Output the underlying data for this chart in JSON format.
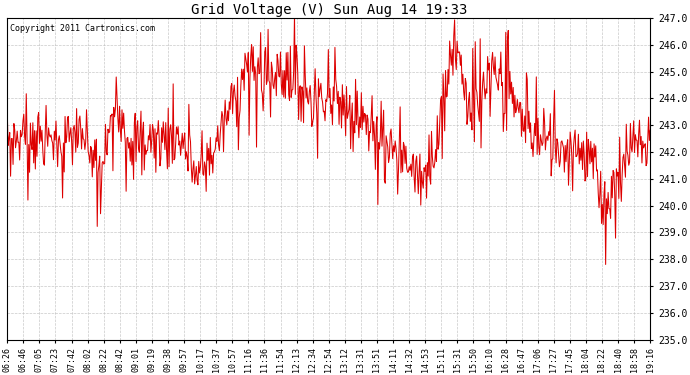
{
  "title": "Grid Voltage (V) Sun Aug 14 19:33",
  "copyright": "Copyright 2011 Cartronics.com",
  "line_color": "#dd0000",
  "bg_color": "#ffffff",
  "plot_bg_color": "#ffffff",
  "grid_color": "#bbbbbb",
  "ylim": [
    235.0,
    247.0
  ],
  "ytick_min": 235.0,
  "ytick_max": 247.0,
  "ytick_step": 1.0,
  "x_labels": [
    "06:26",
    "06:46",
    "07:05",
    "07:23",
    "07:42",
    "08:02",
    "08:22",
    "08:42",
    "09:01",
    "09:19",
    "09:38",
    "09:57",
    "10:17",
    "10:37",
    "10:57",
    "11:16",
    "11:36",
    "11:54",
    "12:13",
    "12:34",
    "12:54",
    "13:12",
    "13:31",
    "13:51",
    "14:11",
    "14:32",
    "14:53",
    "15:11",
    "15:31",
    "15:50",
    "16:10",
    "16:28",
    "16:47",
    "17:06",
    "17:27",
    "17:45",
    "18:04",
    "18:22",
    "18:40",
    "18:58",
    "19:16"
  ],
  "figwidth": 6.9,
  "figheight": 3.75,
  "dpi": 100
}
